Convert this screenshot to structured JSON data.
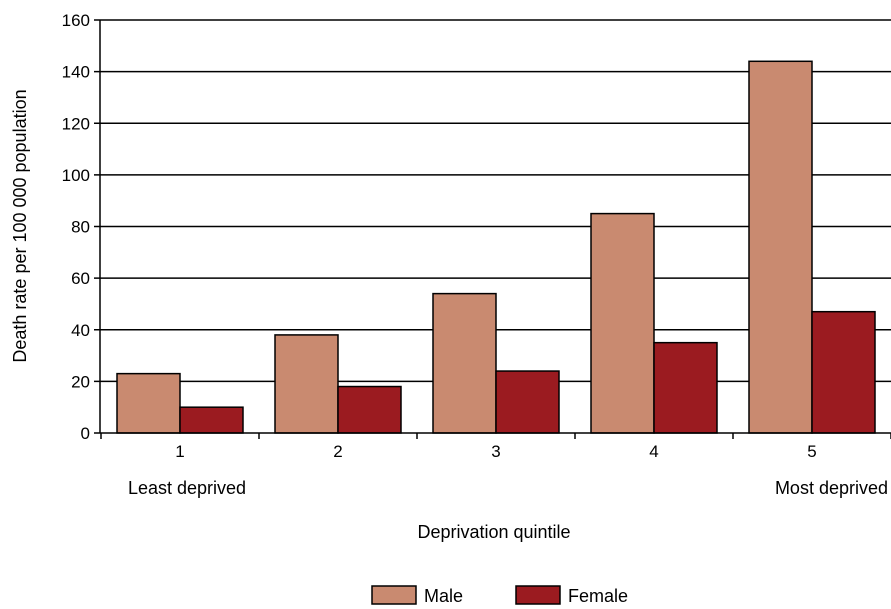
{
  "chart_data": {
    "type": "bar",
    "categories": [
      "1",
      "2",
      "3",
      "4",
      "5"
    ],
    "category_annotations": [
      {
        "category": "1",
        "text": "Least deprived"
      },
      {
        "category": "5",
        "text": "Most deprived"
      }
    ],
    "series": [
      {
        "name": "Male",
        "color": "#c98a70",
        "values": [
          23,
          38,
          54,
          85,
          144
        ]
      },
      {
        "name": "Female",
        "color": "#9b1b20",
        "values": [
          10,
          18,
          24,
          35,
          47
        ]
      }
    ],
    "xlabel": "Deprivation quintile",
    "ylabel": "Death rate per 100 000 population",
    "ylim": [
      0,
      160
    ],
    "yticks": [
      0,
      20,
      40,
      60,
      80,
      100,
      120,
      140,
      160
    ],
    "grid": true,
    "legend_position": "bottom"
  }
}
